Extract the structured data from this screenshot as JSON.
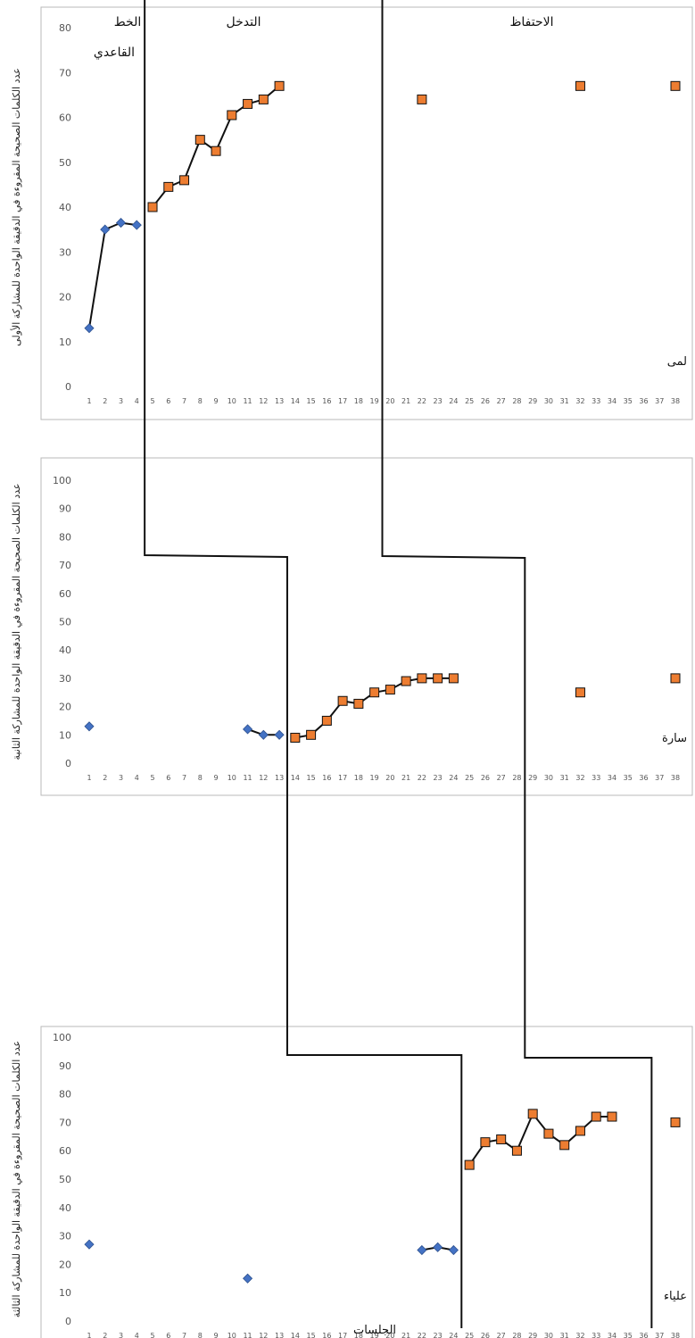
{
  "chart_data": {
    "type": "scatter",
    "title": "",
    "xlabel": "الجلسات",
    "phase_labels": [
      "الخط",
      "القاعدي",
      "التدخل",
      "الاحتفاظ"
    ],
    "x_ticks": [
      1,
      2,
      3,
      4,
      5,
      6,
      7,
      8,
      9,
      10,
      11,
      12,
      13,
      14,
      15,
      16,
      17,
      18,
      19,
      20,
      21,
      22,
      23,
      24,
      25,
      26,
      27,
      28,
      29,
      30,
      31,
      32,
      33,
      34,
      35,
      36,
      37,
      38
    ],
    "colors": {
      "baseline": "#4472c4",
      "intervention": "#ed7d31",
      "line": "#111111"
    },
    "panels": [
      {
        "participant": "لمى",
        "ylabel": "عدد الكلمات الصحيحة المقروءة في الدقيقة الواحدة للمشاركة الأولى",
        "ylim": [
          0,
          80
        ],
        "yticks": [
          0,
          10,
          20,
          30,
          40,
          50,
          60,
          70,
          80
        ],
        "baseline_end": 4.5,
        "intervention_end": 19.5,
        "series": [
          {
            "marker": "diamond",
            "points": [
              [
                1,
                13
              ],
              [
                2,
                35
              ],
              [
                3,
                36.5
              ],
              [
                4,
                36
              ]
            ]
          },
          {
            "marker": "square",
            "points": [
              [
                5,
                40
              ],
              [
                6,
                44.5
              ],
              [
                7,
                46
              ],
              [
                8,
                55
              ],
              [
                9,
                52.5
              ],
              [
                10,
                60.5
              ],
              [
                11,
                63
              ],
              [
                12,
                64
              ],
              [
                13,
                67
              ]
            ]
          },
          {
            "marker": "square",
            "points": [
              [
                22,
                64
              ]
            ]
          },
          {
            "marker": "square",
            "points": [
              [
                32,
                67
              ]
            ]
          },
          {
            "marker": "square",
            "points": [
              [
                38,
                67
              ]
            ]
          }
        ]
      },
      {
        "participant": "سارة",
        "ylabel": "عدد الكلمات الصحيحة المقروءة في الدقيقة الواحدة للمشاركة الثانية",
        "ylim": [
          0,
          100
        ],
        "yticks": [
          0,
          10,
          20,
          30,
          40,
          50,
          60,
          70,
          80,
          90,
          100
        ],
        "baseline_end": 13.5,
        "intervention_end": 28.5,
        "series": [
          {
            "marker": "diamond",
            "points": [
              [
                1,
                13
              ]
            ]
          },
          {
            "marker": "diamond",
            "points": [
              [
                11,
                12
              ],
              [
                12,
                10
              ],
              [
                13,
                10
              ]
            ]
          },
          {
            "marker": "square",
            "points": [
              [
                14,
                9
              ],
              [
                15,
                10
              ],
              [
                16,
                15
              ],
              [
                17,
                22
              ],
              [
                18,
                21
              ],
              [
                19,
                25
              ],
              [
                20,
                26
              ],
              [
                21,
                29
              ],
              [
                22,
                30
              ],
              [
                23,
                30
              ],
              [
                24,
                30
              ]
            ]
          },
          {
            "marker": "square",
            "points": [
              [
                32,
                25
              ]
            ]
          },
          {
            "marker": "square",
            "points": [
              [
                38,
                30
              ]
            ]
          }
        ]
      },
      {
        "participant": "علياء",
        "ylabel": "عدد الكلمات الصحيحة المقروءة في الدقيقة الواحدة للمشاركة الثالثة",
        "ylim": [
          0,
          100
        ],
        "yticks": [
          0,
          10,
          20,
          30,
          40,
          50,
          60,
          70,
          80,
          90,
          100
        ],
        "baseline_end": 24.5,
        "intervention_end": 36.5,
        "series": [
          {
            "marker": "diamond",
            "points": [
              [
                1,
                27
              ]
            ]
          },
          {
            "marker": "diamond",
            "points": [
              [
                11,
                15
              ]
            ]
          },
          {
            "marker": "diamond",
            "points": [
              [
                22,
                25
              ],
              [
                23,
                26
              ],
              [
                24,
                25
              ]
            ]
          },
          {
            "marker": "square",
            "points": [
              [
                25,
                55
              ],
              [
                26,
                63
              ],
              [
                27,
                64
              ],
              [
                28,
                60
              ],
              [
                29,
                73
              ],
              [
                30,
                66
              ],
              [
                31,
                62
              ],
              [
                32,
                67
              ],
              [
                33,
                72
              ],
              [
                34,
                72
              ]
            ]
          },
          {
            "marker": "square",
            "points": [
              [
                38,
                70
              ]
            ]
          }
        ]
      }
    ]
  }
}
